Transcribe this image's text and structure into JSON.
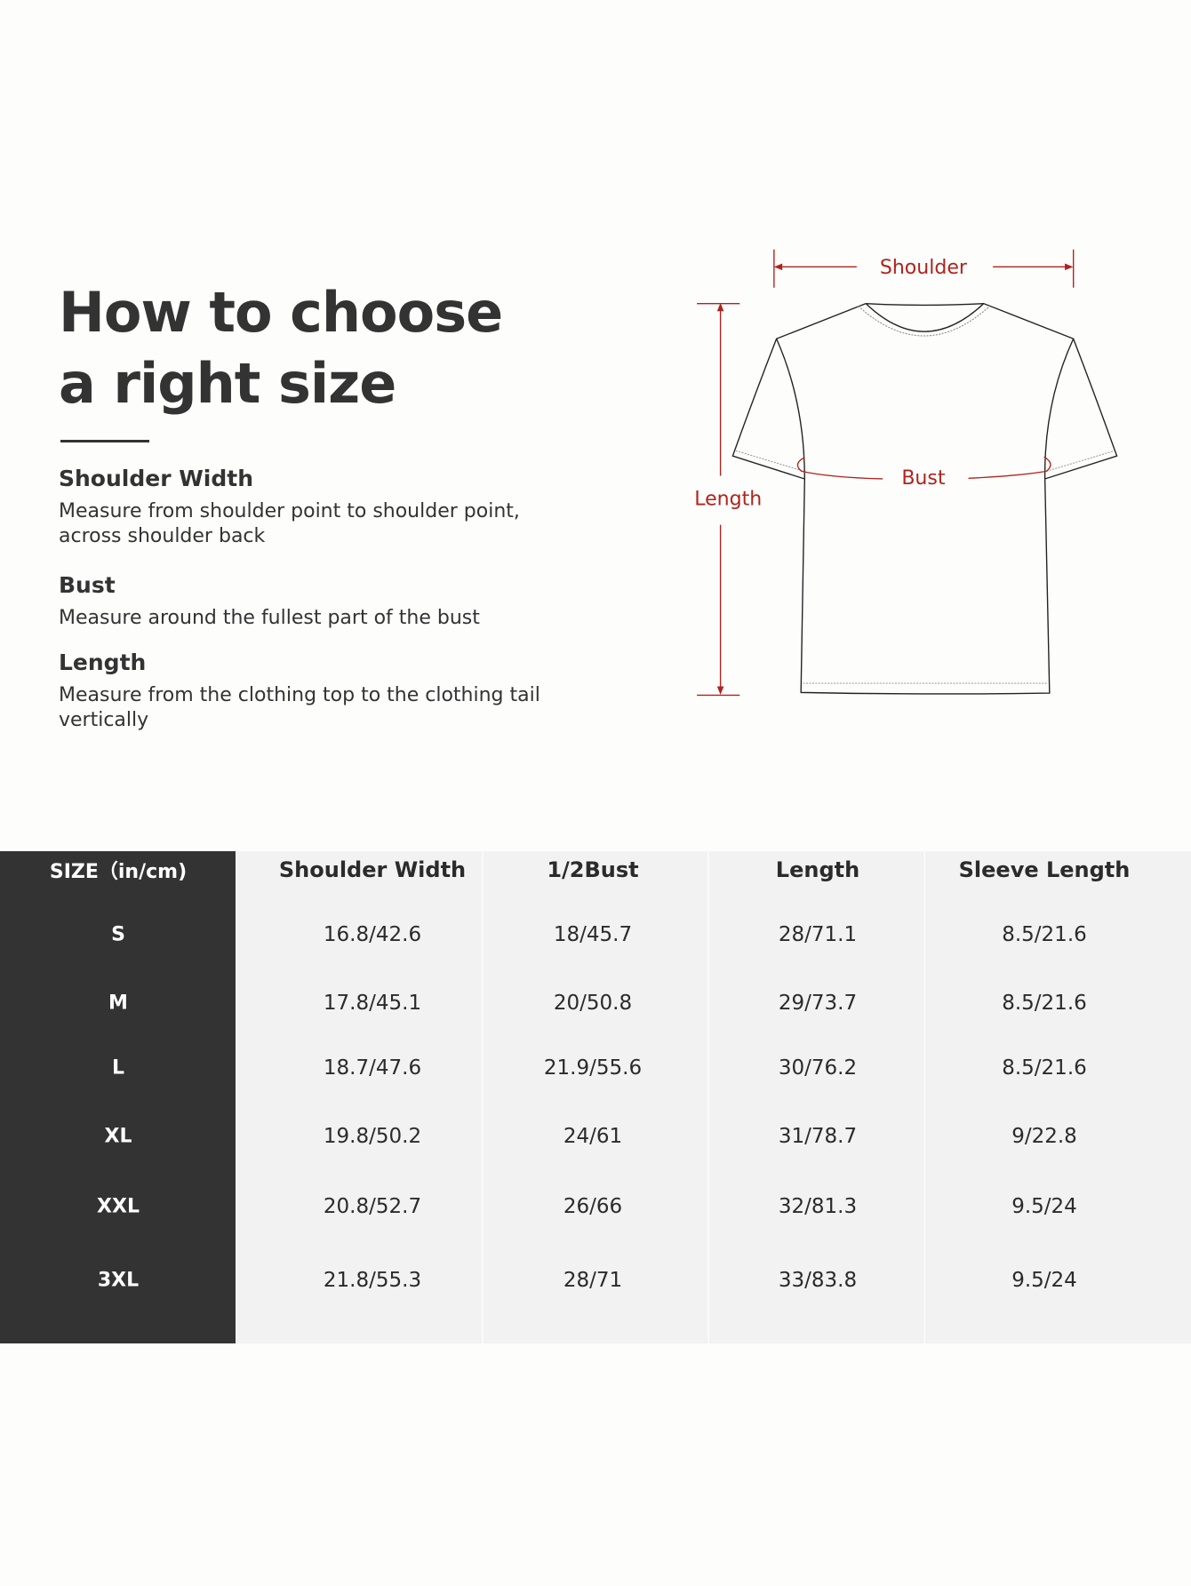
{
  "intro": {
    "title_line1": "How to choose",
    "title_line2": "a right size",
    "sections": [
      {
        "heading": "Shoulder Width",
        "lines": [
          "Measure from shoulder point to shoulder point,",
          "across shoulder back"
        ]
      },
      {
        "heading": "Bust",
        "lines": [
          "Measure around the fullest part of the bust"
        ]
      },
      {
        "heading": "Length",
        "lines": [
          "Measure from the clothing top to the clothing tail",
          "vertically"
        ]
      }
    ]
  },
  "diagram": {
    "shoulder_label": "Shoulder",
    "bust_label": "Bust",
    "length_label": "Length",
    "accent_color": "#b0231d"
  },
  "size_table": {
    "headers": [
      "SIZE（in/cm)",
      "Shoulder Width",
      "1/2Bust",
      "Length",
      "Sleeve Length"
    ],
    "rows": [
      [
        "S",
        "16.8/42.6",
        "18/45.7",
        "28/71.1",
        "8.5/21.6"
      ],
      [
        "M",
        "17.8/45.1",
        "20/50.8",
        "29/73.7",
        "8.5/21.6"
      ],
      [
        "L",
        "18.7/47.6",
        "21.9/55.6",
        "30/76.2",
        "8.5/21.6"
      ],
      [
        "XL",
        "19.8/50.2",
        "24/61",
        "31/78.7",
        "9/22.8"
      ],
      [
        "XXL",
        "20.8/52.7",
        "26/66",
        "32/81.3",
        "9.5/24"
      ],
      [
        "3XL",
        "21.8/55.3",
        "28/71",
        "33/83.8",
        "9.5/24"
      ]
    ]
  }
}
